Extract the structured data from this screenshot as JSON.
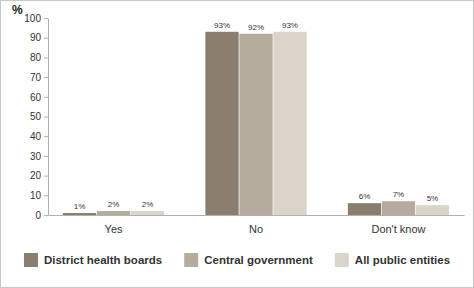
{
  "chart_data": {
    "type": "bar",
    "y_label": "%",
    "categories": [
      "Yes",
      "No",
      "Don't know"
    ],
    "series": [
      {
        "name": "District health boards",
        "color": "#8a7f6e",
        "values": [
          1,
          93,
          6
        ],
        "value_labels": [
          "1%",
          "93%",
          "6%"
        ]
      },
      {
        "name": "Central government",
        "color": "#b5ac9d",
        "values": [
          2,
          92,
          7
        ],
        "value_labels": [
          "2%",
          "92%",
          "7%"
        ]
      },
      {
        "name": "All public entities",
        "color": "#dad4cb",
        "values": [
          2,
          93,
          5
        ],
        "value_labels": [
          "2%",
          "93%",
          "5%"
        ]
      }
    ],
    "ylim": [
      0,
      100
    ],
    "yticks": [
      0,
      10,
      20,
      30,
      40,
      50,
      60,
      70,
      80,
      90,
      100
    ],
    "grid": false,
    "data_labels": true,
    "legend": "bottom"
  }
}
